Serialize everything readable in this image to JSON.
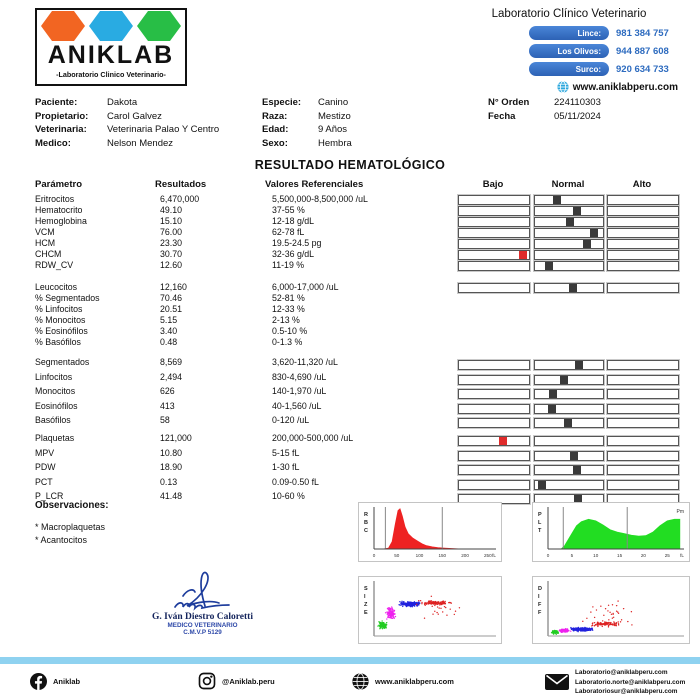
{
  "header": {
    "logo": {
      "name": "ANIKLAB",
      "tagline": "-Laboratorio Clinico Veterinario-",
      "hex_colors": [
        "#F26522",
        "#29ABE2",
        "#28BE46"
      ]
    },
    "clinic_title": "Laboratorio Clínico Veterinario",
    "locations": [
      {
        "label": "Lince:",
        "phone": "981 384 757"
      },
      {
        "label": "Los Olivos:",
        "phone": "944 887 608"
      },
      {
        "label": "Surco:",
        "phone": "920 634 733"
      }
    ],
    "website": "www.aniklabperu.com",
    "pill_color": "#2d62b5",
    "phone_color": "#2d6bbf"
  },
  "patient": {
    "col1": [
      {
        "label": "Paciente:",
        "value": "Dakota"
      },
      {
        "label": "Propietario:",
        "value": "Carol Galvez"
      },
      {
        "label": "Veterinaria:",
        "value": "Veterinaria Palao Y Centro"
      },
      {
        "label": "Medico:",
        "value": "Nelson Mendez"
      }
    ],
    "col2": [
      {
        "label": "Especie:",
        "value": "Canino"
      },
      {
        "label": "Raza:",
        "value": "Mestizo"
      },
      {
        "label": "Edad:",
        "value": "9 Años"
      },
      {
        "label": "Sexo:",
        "value": "Hembra"
      }
    ],
    "col3": [
      {
        "label": "N° Orden",
        "value": "224110303"
      },
      {
        "label": "Fecha",
        "value": "05/11/2024"
      }
    ]
  },
  "report": {
    "title": "RESULTADO HEMATOLÓGICO",
    "columns": {
      "param": "Parámetro",
      "result": "Resultados",
      "ref": "Valores Referenciales",
      "low": "Bajo",
      "normal": "Normal",
      "high": "Alto"
    },
    "marker_normal_color": "#3a3a3a",
    "marker_abnormal_color": "#e02b2b",
    "groups": [
      {
        "wide": false,
        "rows": [
          {
            "param": "Eritrocitos",
            "result": "6,470,000",
            "ref": "5,500,000-8,500,000 /uL",
            "bar": {
              "zone": "normal",
              "pos": 0.32
            }
          },
          {
            "param": "Hematocrito",
            "result": "49.10",
            "ref": "37-55 %",
            "bar": {
              "zone": "normal",
              "pos": 0.62
            }
          },
          {
            "param": "Hemoglobina",
            "result": "15.10",
            "ref": "12-18 g/dL",
            "bar": {
              "zone": "normal",
              "pos": 0.52
            }
          },
          {
            "param": "VCM",
            "result": "76.00",
            "ref": "62-78 fL",
            "bar": {
              "zone": "normal",
              "pos": 0.87
            }
          },
          {
            "param": "HCM",
            "result": "23.30",
            "ref": "19.5-24.5 pg",
            "bar": {
              "zone": "normal",
              "pos": 0.76
            }
          },
          {
            "param": "CHCM",
            "result": "30.70",
            "ref": "32-36 g/dL",
            "bar": {
              "zone": "low",
              "pos": 0.92
            }
          },
          {
            "param": "RDW_CV",
            "result": "12.60",
            "ref": "11-19 %",
            "bar": {
              "zone": "normal",
              "pos": 0.2
            }
          }
        ]
      },
      {
        "wide": false,
        "rows": [
          {
            "param": "Leucocitos",
            "result": "12,160",
            "ref": "6,000-17,000 /uL",
            "bar": {
              "zone": "normal",
              "pos": 0.56
            }
          },
          {
            "param": "% Segmentados",
            "result": "70.46",
            "ref": "52-81 %",
            "bar": null
          },
          {
            "param": "% Linfocitos",
            "result": "20.51",
            "ref": "12-33 %",
            "bar": null
          },
          {
            "param": "% Monocitos",
            "result": "5.15",
            "ref": "2-13 %",
            "bar": null
          },
          {
            "param": "% Eosinófilos",
            "result": "3.40",
            "ref": "0.5-10 %",
            "bar": null
          },
          {
            "param": "% Basófilos",
            "result": "0.48",
            "ref": "0-1.3 %",
            "bar": null
          }
        ]
      },
      {
        "wide": true,
        "rows": [
          {
            "param": "Segmentados",
            "result": "8,569",
            "ref": "3,620-11,320 /uL",
            "bar": {
              "zone": "normal",
              "pos": 0.64
            }
          },
          {
            "param": "Linfocitos",
            "result": "2,494",
            "ref": "830-4,690 /uL",
            "bar": {
              "zone": "normal",
              "pos": 0.43
            }
          },
          {
            "param": "Monocitos",
            "result": "626",
            "ref": "140-1,970 /uL",
            "bar": {
              "zone": "normal",
              "pos": 0.27
            }
          },
          {
            "param": "Eosinófilos",
            "result": "413",
            "ref": "40-1,560 /uL",
            "bar": {
              "zone": "normal",
              "pos": 0.25
            }
          },
          {
            "param": "Basófilos",
            "result": "58",
            "ref": "0-120 /uL",
            "bar": {
              "zone": "normal",
              "pos": 0.48
            }
          }
        ]
      },
      {
        "wide": true,
        "rows": [
          {
            "param": "Plaquetas",
            "result": "121,000",
            "ref": "200,000-500,000 /uL",
            "bar": {
              "zone": "low",
              "pos": 0.63
            }
          },
          {
            "param": "MPV",
            "result": "10.80",
            "ref": "5-15 fL",
            "bar": {
              "zone": "normal",
              "pos": 0.58
            }
          },
          {
            "param": "PDW",
            "result": "18.90",
            "ref": "1-30 fL",
            "bar": {
              "zone": "normal",
              "pos": 0.62
            }
          },
          {
            "param": "PCT",
            "result": "0.13",
            "ref": "0.09-0.50 fL",
            "bar": {
              "zone": "normal",
              "pos": 0.1
            }
          },
          {
            "param": "P_LCR",
            "result": "41.48",
            "ref": "10-60 %",
            "bar": {
              "zone": "normal",
              "pos": 0.63
            }
          }
        ]
      }
    ]
  },
  "observations": {
    "title": "Observaciones:",
    "items": [
      "* Macroplaquetas",
      "* Acantocitos"
    ]
  },
  "signature": {
    "name": "G. Iván Diestro Caloretti",
    "role": "MEDICO VETERINARIO",
    "license": "C.M.V.P 5129"
  },
  "chart_data": [
    {
      "id": "rbc",
      "type": "area",
      "label": "RBC",
      "color": "#ee2222",
      "xlim": [
        0,
        268
      ],
      "ticks": [
        0,
        50,
        100,
        150,
        200,
        250
      ],
      "unit": "fL",
      "vlines": [
        25,
        150
      ],
      "annotation": "",
      "curve": [
        [
          22,
          0
        ],
        [
          32,
          2
        ],
        [
          40,
          18
        ],
        [
          47,
          62
        ],
        [
          53,
          96
        ],
        [
          57,
          100
        ],
        [
          62,
          82
        ],
        [
          68,
          55
        ],
        [
          75,
          38
        ],
        [
          85,
          27
        ],
        [
          95,
          20
        ],
        [
          105,
          13
        ],
        [
          115,
          8
        ],
        [
          128,
          5
        ],
        [
          140,
          3
        ],
        [
          155,
          2
        ],
        [
          170,
          1
        ],
        [
          185,
          0
        ]
      ]
    },
    {
      "id": "plt",
      "type": "area",
      "label": "PLT",
      "color": "#22dd22",
      "xlim": [
        0,
        28.5
      ],
      "ticks": [
        0,
        5,
        10,
        15,
        20,
        25
      ],
      "unit": "fL",
      "vlines": [
        3.2,
        16.6
      ],
      "annotation": "Pm",
      "curve": [
        [
          2.8,
          0
        ],
        [
          3.5,
          8
        ],
        [
          5,
          38
        ],
        [
          6,
          58
        ],
        [
          7,
          68
        ],
        [
          8.5,
          74
        ],
        [
          10,
          70
        ],
        [
          11.5,
          60
        ],
        [
          13,
          48
        ],
        [
          14.5,
          42
        ],
        [
          16,
          38
        ],
        [
          17.5,
          34
        ],
        [
          19,
          32
        ],
        [
          20.5,
          33
        ],
        [
          22,
          42
        ],
        [
          23.5,
          58
        ],
        [
          25,
          70
        ],
        [
          26.5,
          74
        ],
        [
          27.6,
          74
        ],
        [
          27.6,
          0
        ]
      ]
    },
    {
      "id": "size",
      "type": "scatter",
      "label": "SIZE",
      "clusters": [
        {
          "color": "#22cc22",
          "cx": 0.07,
          "cy": 0.8,
          "rx": 0.045,
          "ry": 0.09,
          "n": 130
        },
        {
          "color": "#ee22ee",
          "cx": 0.14,
          "cy": 0.58,
          "rx": 0.05,
          "ry": 0.13,
          "n": 110
        },
        {
          "color": "#2222dd",
          "cx": 0.3,
          "cy": 0.42,
          "rx": 0.11,
          "ry": 0.055,
          "n": 260
        },
        {
          "color": "#dd2222",
          "cx": 0.5,
          "cy": 0.4,
          "rx": 0.14,
          "ry": 0.045,
          "n": 120
        },
        {
          "color": "#dd2222",
          "cx": 0.55,
          "cy": 0.45,
          "rx": 0.3,
          "ry": 0.25,
          "n": 35
        }
      ]
    },
    {
      "id": "diff",
      "type": "scatter",
      "label": "DIFF",
      "clusters": [
        {
          "color": "#22cc22",
          "cx": 0.05,
          "cy": 0.93,
          "rx": 0.035,
          "ry": 0.05,
          "n": 90
        },
        {
          "color": "#ee22ee",
          "cx": 0.12,
          "cy": 0.9,
          "rx": 0.05,
          "ry": 0.045,
          "n": 80
        },
        {
          "color": "#2222dd",
          "cx": 0.25,
          "cy": 0.88,
          "rx": 0.11,
          "ry": 0.045,
          "n": 240
        },
        {
          "color": "#dd2222",
          "cx": 0.42,
          "cy": 0.78,
          "rx": 0.15,
          "ry": 0.06,
          "n": 110
        },
        {
          "color": "#dd2222",
          "cx": 0.45,
          "cy": 0.6,
          "rx": 0.28,
          "ry": 0.3,
          "n": 30
        }
      ]
    }
  ],
  "footer": {
    "facebook_label": "Aniklab",
    "instagram_label": "@Aniklab.peru",
    "website_label": "www.aniklabperu.com",
    "emails": [
      "Laboratorio@aniklabperu.com",
      "Laboratorio.norte@aniklabperu.com",
      "Laboratoriosur@aniklabperu.com"
    ],
    "bar_color": "#8fd2f0"
  }
}
